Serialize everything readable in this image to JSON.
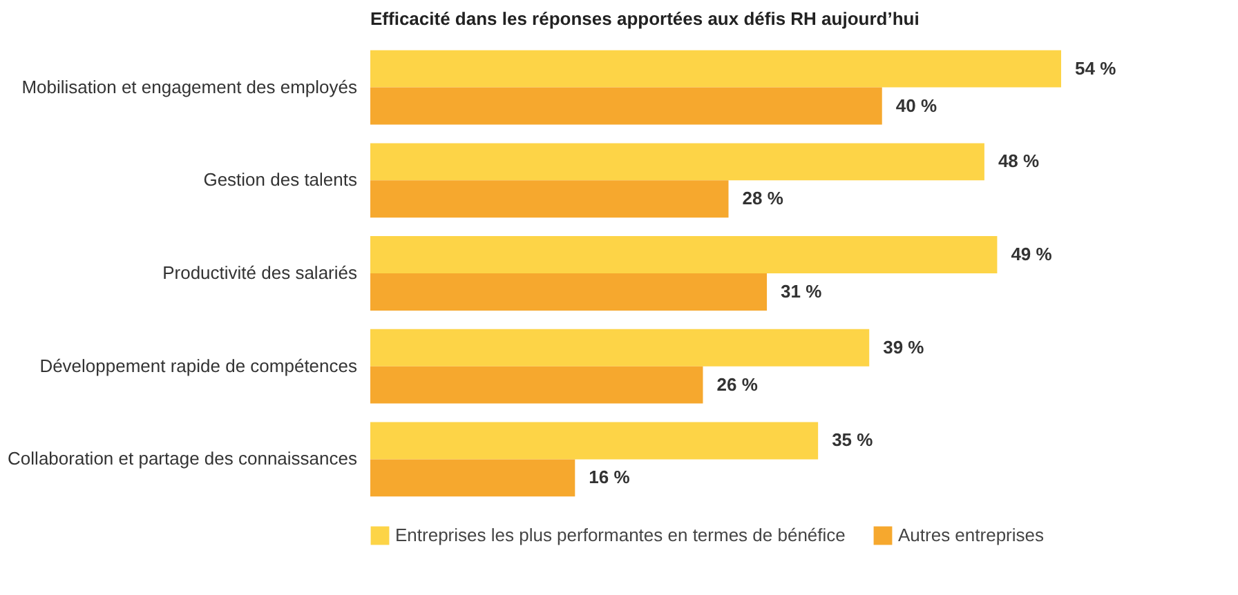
{
  "chart_data": {
    "type": "bar",
    "orientation": "horizontal",
    "title": "Efficacité dans les réponses apportées aux défis RH aujourd’hui",
    "categories": [
      "Mobilisation et engagement des employés",
      "Gestion des talents",
      "Productivité des salariés",
      "Développement rapide de compétences",
      "Collaboration et partage des connaissances"
    ],
    "series": [
      {
        "name": "Entreprises les plus performantes en termes de bénéfice",
        "color": "#fdd447",
        "values": [
          54,
          48,
          49,
          39,
          35
        ],
        "value_labels": [
          "54 %",
          "48 %",
          "49 %",
          "39 %",
          "35 %"
        ]
      },
      {
        "name": "Autres entreprises",
        "color": "#f6a82e",
        "values": [
          40,
          28,
          31,
          26,
          16
        ],
        "value_labels": [
          "40 %",
          "28 %",
          "31 %",
          "26 %",
          "16 %"
        ]
      }
    ],
    "legend": "bottom",
    "grid": false
  }
}
